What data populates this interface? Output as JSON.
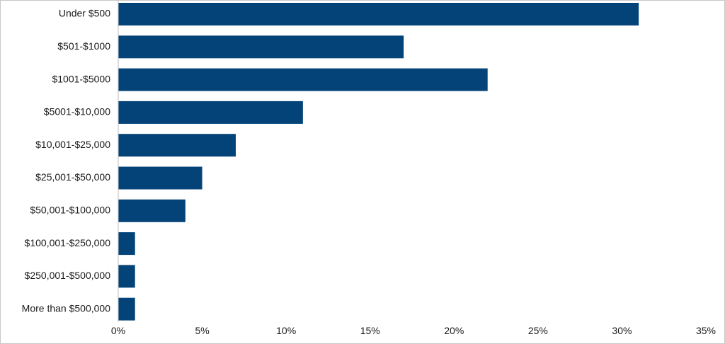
{
  "chart_data": {
    "type": "bar",
    "orientation": "horizontal",
    "title": "",
    "xlabel": "",
    "ylabel": "",
    "categories": [
      "Under $500",
      "$501-$1000",
      "$1001-$5000",
      "$5001-$10,000",
      "$10,001-$25,000",
      "$25,001-$50,000",
      "$50,001-$100,000",
      "$100,001-$250,000",
      "$250,001-$500,000",
      "More than $500,000"
    ],
    "values": [
      31,
      17,
      22,
      11,
      7,
      5,
      4,
      1,
      1,
      1
    ],
    "xlim": [
      0,
      35
    ],
    "xticks": [
      0,
      5,
      10,
      15,
      20,
      25,
      30,
      35
    ],
    "xtick_labels": [
      "0%",
      "5%",
      "10%",
      "15%",
      "20%",
      "25%",
      "30%",
      "35%"
    ],
    "grid": false,
    "legend": "none",
    "bar_color": "#034378"
  }
}
